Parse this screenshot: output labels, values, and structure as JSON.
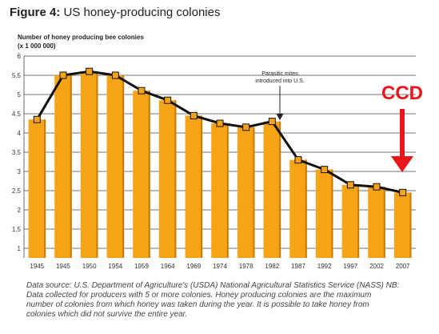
{
  "figure": {
    "label": "Figure 4:",
    "title": "US honey-producing colonies"
  },
  "chart_data": {
    "type": "bar",
    "ylabel_lines": [
      "Number of honey producing bee colonies",
      "(x 1 000 000)"
    ],
    "categories": [
      "1945",
      "1945",
      "1950",
      "1954",
      "1959",
      "1964",
      "1969",
      "1974",
      "1978",
      "1982",
      "1987",
      "1992",
      "1997",
      "2002",
      "2007"
    ],
    "values": [
      4.35,
      5.5,
      5.6,
      5.5,
      5.1,
      4.85,
      4.45,
      4.25,
      4.15,
      4.3,
      3.3,
      3.05,
      2.65,
      2.6,
      2.45
    ],
    "yticks": [
      "1",
      "1.5",
      "2",
      "2.5",
      "3",
      "3.5",
      "4",
      "4.5",
      "5",
      "5.5",
      "6"
    ],
    "ylim": [
      0.75,
      6
    ],
    "grid": true,
    "series_overlay": "line with square markers over bars",
    "annotations": {
      "mites": [
        "Parasitic mites",
        "introduced into U.S."
      ],
      "ccd": "CCD"
    },
    "colors": {
      "bar": "#f7a316",
      "bar_dark": "#c97a06",
      "line": "#111111",
      "marker_fill": "#f7a316",
      "ccd": "#e8151b",
      "grid": "#444444"
    }
  },
  "source_note": [
    "Data source: U.S. Department of Agriculture's (USDA) National Agricultural Statistics Service (NASS) NB:",
    "Data collected for producers with 5 or more colonies. Honey producing colonies are the maximum",
    "number of colonies from which honey was taken during the year. It is possible to take honey from",
    "colonies which did not survive the entire year."
  ]
}
